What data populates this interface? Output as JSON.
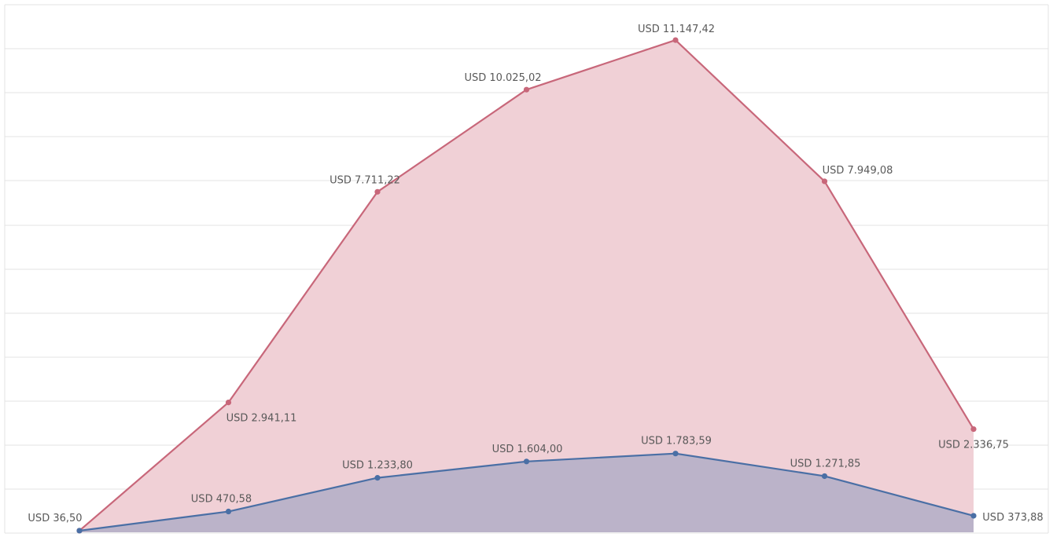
{
  "chart_data": {
    "type": "area",
    "categories": [
      "",
      "",
      "",
      "",
      "",
      "",
      ""
    ],
    "series": [
      {
        "values": [
          36.5,
          2941.11,
          7711.22,
          10025.02,
          11147.42,
          7949.08,
          2336.75
        ],
        "labels": [
          "",
          "USD 2.941,11",
          "USD 7.711,22",
          "USD 10.025,02",
          "USD 11.147,42",
          "USD 7.949,08",
          "USD 2.336,75"
        ],
        "line_color": "#c8677a",
        "fill_color": "#f0d0d6"
      },
      {
        "values": [
          36.5,
          470.58,
          1233.8,
          1604.0,
          1783.59,
          1271.85,
          373.88
        ],
        "labels": [
          "USD 36,50",
          "USD 470,58",
          "USD 1.233,80",
          "USD 1.604,00",
          "USD 1.783,59",
          "USD 1.271,85",
          "USD 373,88"
        ],
        "line_color": "#4a6fa5",
        "fill_color": "#bbb3c9"
      }
    ],
    "ylim": [
      0,
      12000
    ],
    "grid": true,
    "legend": "none",
    "title": "",
    "xlabel": "",
    "ylabel": ""
  }
}
